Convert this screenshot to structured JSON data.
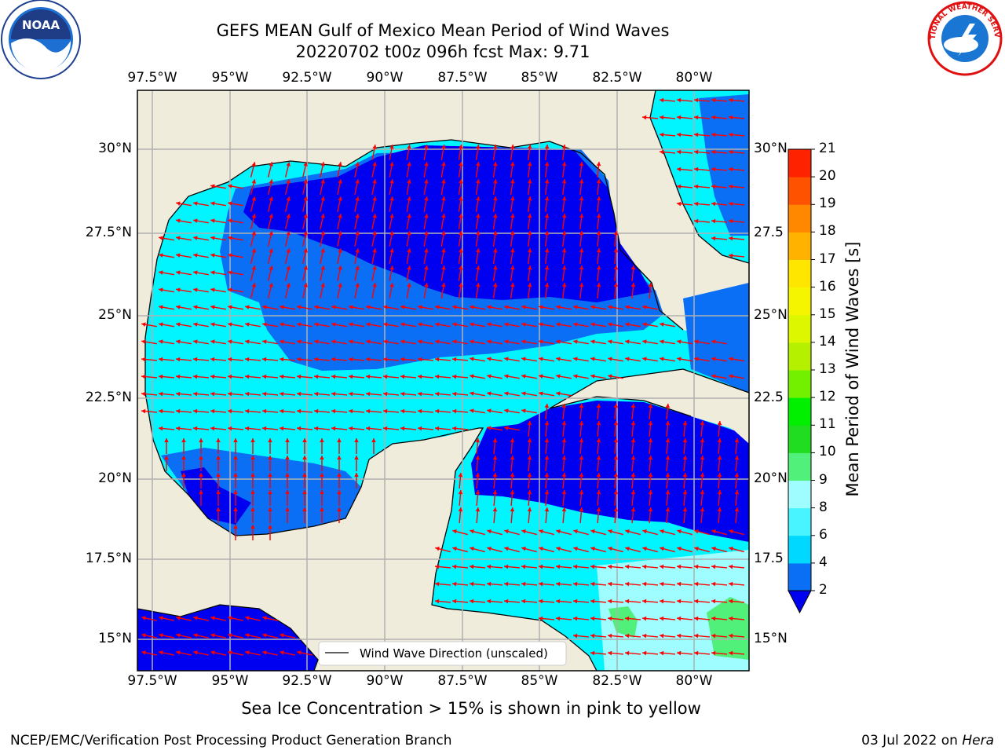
{
  "title": {
    "line1": "GEFS MEAN Gulf of Mexico Mean Period of Wind Waves",
    "line2": "20220702 t00z 096h fcst   Max: 9.71"
  },
  "logos": {
    "left_lettering": "NOAA",
    "right_lettering": "NATIONAL WEATHER SERVICE"
  },
  "axes": {
    "lon_ticks": [
      "97.5°W",
      "95°W",
      "92.5°W",
      "90°W",
      "87.5°W",
      "85°W",
      "82.5°W",
      "80°W"
    ],
    "lat_ticks": [
      "30°N",
      "27.5°N",
      "25°N",
      "22.5°N",
      "20°N",
      "17.5°N",
      "15°N"
    ],
    "lat_ticks_right": [
      "30°N",
      "27.5",
      "25°N",
      "22.5",
      "20°N",
      "17.5",
      "15°N"
    ]
  },
  "legend": {
    "label": "Wind Wave Direction (unscaled)"
  },
  "colorbar": {
    "label": "Mean Period of Wind Waves [s]",
    "ticks": [
      "2",
      "4",
      "6",
      "8",
      "9",
      "10",
      "11",
      "12",
      "13",
      "14",
      "15",
      "16",
      "17",
      "18",
      "19",
      "20",
      "21"
    ],
    "colors": [
      "#0a6ff5",
      "#00d8ff",
      "#47f4ff",
      "#9ffcff",
      "#51f07a",
      "#21dd21",
      "#00f000",
      "#73f000",
      "#b5f000",
      "#dcf700",
      "#f5f500",
      "#ffe600",
      "#ffb300",
      "#ff8800",
      "#ff5200",
      "#ff2200"
    ],
    "extend_color": "#0000f0"
  },
  "caption": "Sea Ice Concentration > 15% is shown in pink to yellow",
  "footer": {
    "left": "NCEP/EMC/Verification Post Processing Product Generation Branch",
    "right_date": "03 Jul 2022 on",
    "right_host": "Hera"
  },
  "map_colors": {
    "land": "#efecdc",
    "level_1": "#0000f0",
    "level_2": "#0a6ff5",
    "level_3": "#00f5ff",
    "level_4": "#9ffcff",
    "level_5": "#51f07a",
    "arrow": "#ff0000"
  }
}
